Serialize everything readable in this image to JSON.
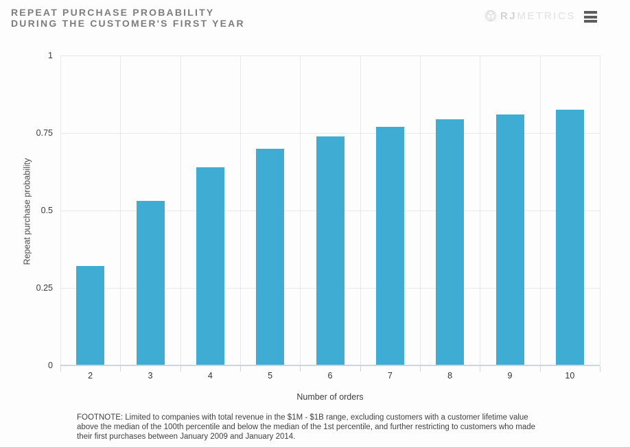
{
  "header": {
    "title_line1": "REPEAT PURCHASE PROBABILITY",
    "title_line2": "DURING THE CUSTOMER'S FIRST YEAR",
    "brand_primary": "RJ",
    "brand_secondary": "METRICS"
  },
  "chart_data": {
    "type": "bar",
    "title": "Repeat purchase probability during the customer's first year",
    "categories": [
      "2",
      "3",
      "4",
      "5",
      "6",
      "7",
      "8",
      "9",
      "10"
    ],
    "values": [
      0.32,
      0.53,
      0.64,
      0.7,
      0.74,
      0.77,
      0.795,
      0.81,
      0.825
    ],
    "xlabel": "Number of orders",
    "ylabel": "Repeat purchase probability",
    "ylim": [
      0,
      1
    ],
    "yticks": [
      0,
      0.25,
      0.5,
      0.75,
      1
    ],
    "ytick_labels": [
      "0",
      "0.25",
      "0.5",
      "0.75",
      "1"
    ],
    "grid": true,
    "legend": "none",
    "bar_color": "#3facd3"
  },
  "footnote": "FOOTNOTE: Limited to companies with total revenue in the $1M - $1B range, excluding customers with a customer lifetime value above the median of the 100th percentile and below the median of the 1st percentile, and further restricting to customers who made their first purchases between January 2009 and January 2014.",
  "colors": {
    "bar": "#3facd3",
    "grid_line": "#e8e8e8",
    "axis_line": "#cdd5e0",
    "title_text": "#7d7d7d",
    "brand_text": "#dcdcdc",
    "menu_icon": "#5d5d5d"
  }
}
